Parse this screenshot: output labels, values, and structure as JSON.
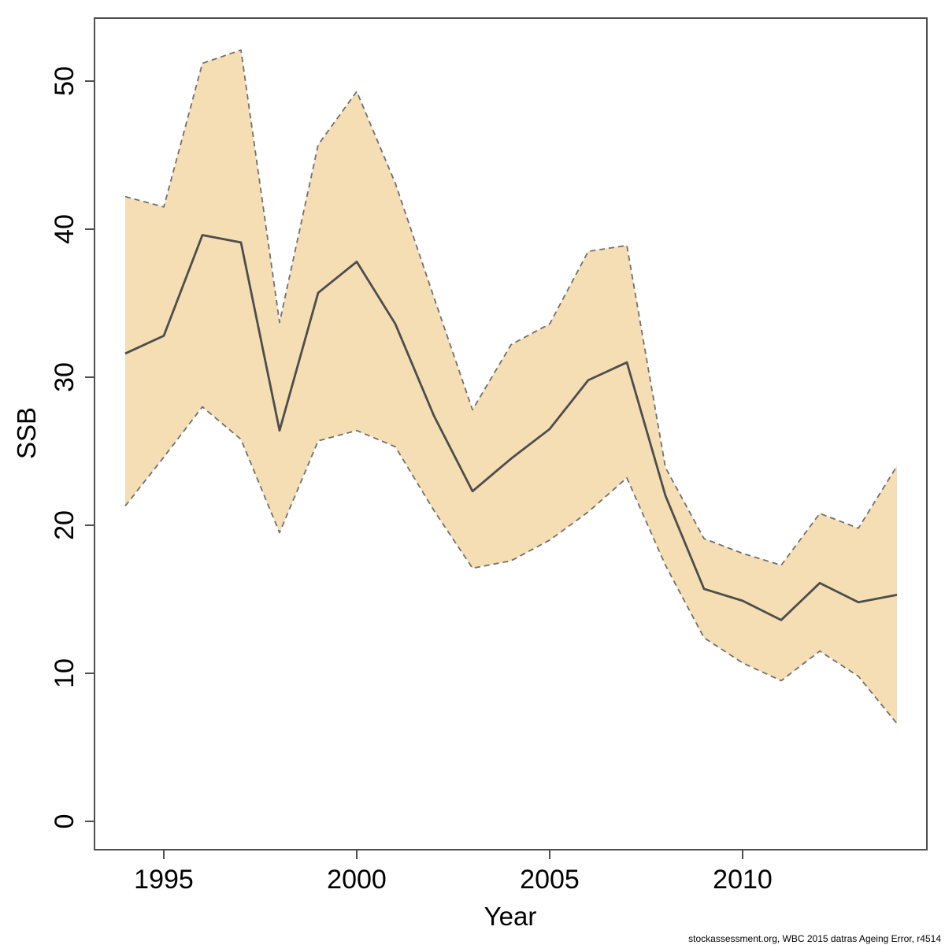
{
  "chart_data": {
    "type": "line",
    "subtype": "median-line-with-confidence-band",
    "title": "",
    "xlabel": "Year",
    "ylabel": "SSB",
    "x_range": [
      1994,
      2014
    ],
    "y_axis_ticks": [
      0,
      10,
      20,
      30,
      40,
      50
    ],
    "x_axis_ticks": [
      1995,
      2000,
      2005,
      2010
    ],
    "grid": "off",
    "legend": "none",
    "years": [
      1994,
      1995,
      1996,
      1997,
      1998,
      1999,
      2000,
      2001,
      2002,
      2003,
      2004,
      2005,
      2006,
      2007,
      2008,
      2009,
      2010,
      2011,
      2012,
      2013,
      2014
    ],
    "series": [
      {
        "name": "SSB median",
        "values": [
          31.6,
          32.8,
          39.6,
          39.1,
          26.4,
          35.7,
          37.8,
          33.6,
          27.4,
          22.3,
          24.5,
          26.5,
          29.8,
          31.0,
          22.0,
          15.7,
          14.9,
          13.6,
          16.1,
          14.8,
          15.3
        ]
      },
      {
        "name": "lower confidence bound",
        "values": [
          21.3,
          24.6,
          28.0,
          25.8,
          19.5,
          25.7,
          26.4,
          25.3,
          21.0,
          17.1,
          17.6,
          19.0,
          20.9,
          23.2,
          17.3,
          12.4,
          10.7,
          9.5,
          11.5,
          9.8,
          6.6
        ]
      },
      {
        "name": "upper confidence bound",
        "values": [
          42.2,
          41.5,
          51.2,
          52.1,
          33.7,
          45.7,
          49.3,
          43.1,
          35.4,
          27.8,
          32.2,
          33.6,
          38.5,
          38.9,
          23.9,
          19.1,
          18.1,
          17.3,
          20.8,
          19.8,
          24.0
        ]
      }
    ],
    "colors": {
      "band_fill": "#f5deb3",
      "band_edge": "#707070",
      "median_line": "#4d4d4d",
      "axis": "#4f4f4f",
      "text": "#000000"
    },
    "footer": "stockassessment.org, WBC 2015 datras Ageing Error, r4514"
  }
}
